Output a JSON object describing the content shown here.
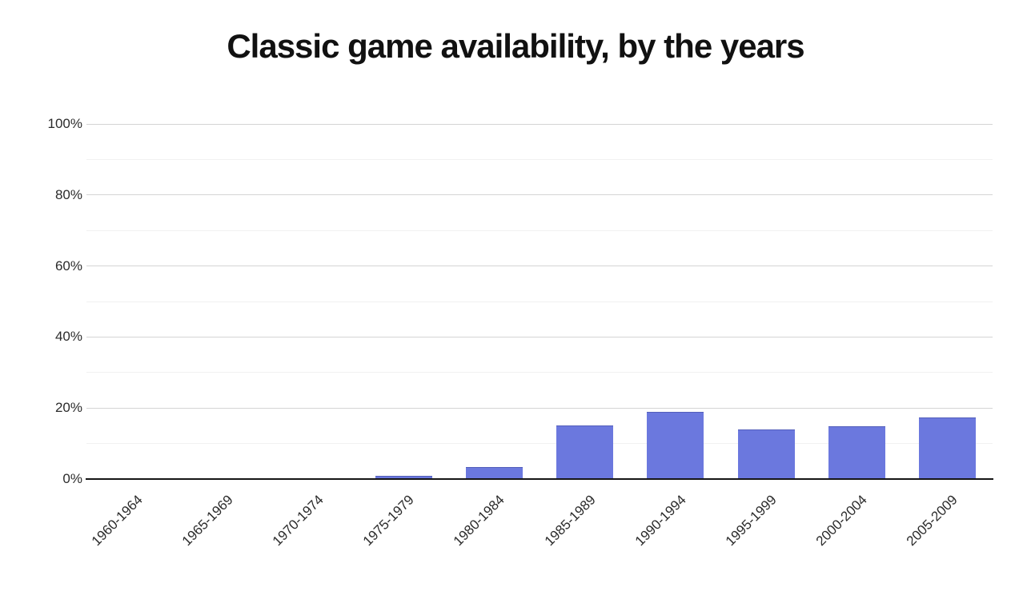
{
  "chart_data": {
    "type": "bar",
    "title": "Classic game availability, by the years",
    "categories": [
      "1960-1964",
      "1965-1969",
      "1970-1974",
      "1975-1979",
      "1980-1984",
      "1985-1989",
      "1990-1994",
      "1995-1999",
      "2000-2004",
      "2005-2009"
    ],
    "values": [
      0,
      0,
      0,
      0.8,
      3.3,
      15,
      19,
      14,
      14.8,
      17.3
    ],
    "xlabel": "",
    "ylabel": "",
    "ylim": [
      0,
      100
    ],
    "y_ticks": [
      "0%",
      "20%",
      "40%",
      "60%",
      "80%",
      "100%"
    ],
    "y_tick_values": [
      0,
      20,
      40,
      60,
      80,
      100
    ],
    "minor_grid_step": 10,
    "grid": "horizontal, major every 20%, minor every 10%",
    "legend": "none",
    "colors": {
      "bar": "#6b78de",
      "axis": "#161616",
      "major_grid": "#d4d4d4",
      "minor_grid": "#f1f1f1",
      "tick_label": "#2b2b2b",
      "title": "#111111",
      "background": "#ffffff"
    }
  }
}
